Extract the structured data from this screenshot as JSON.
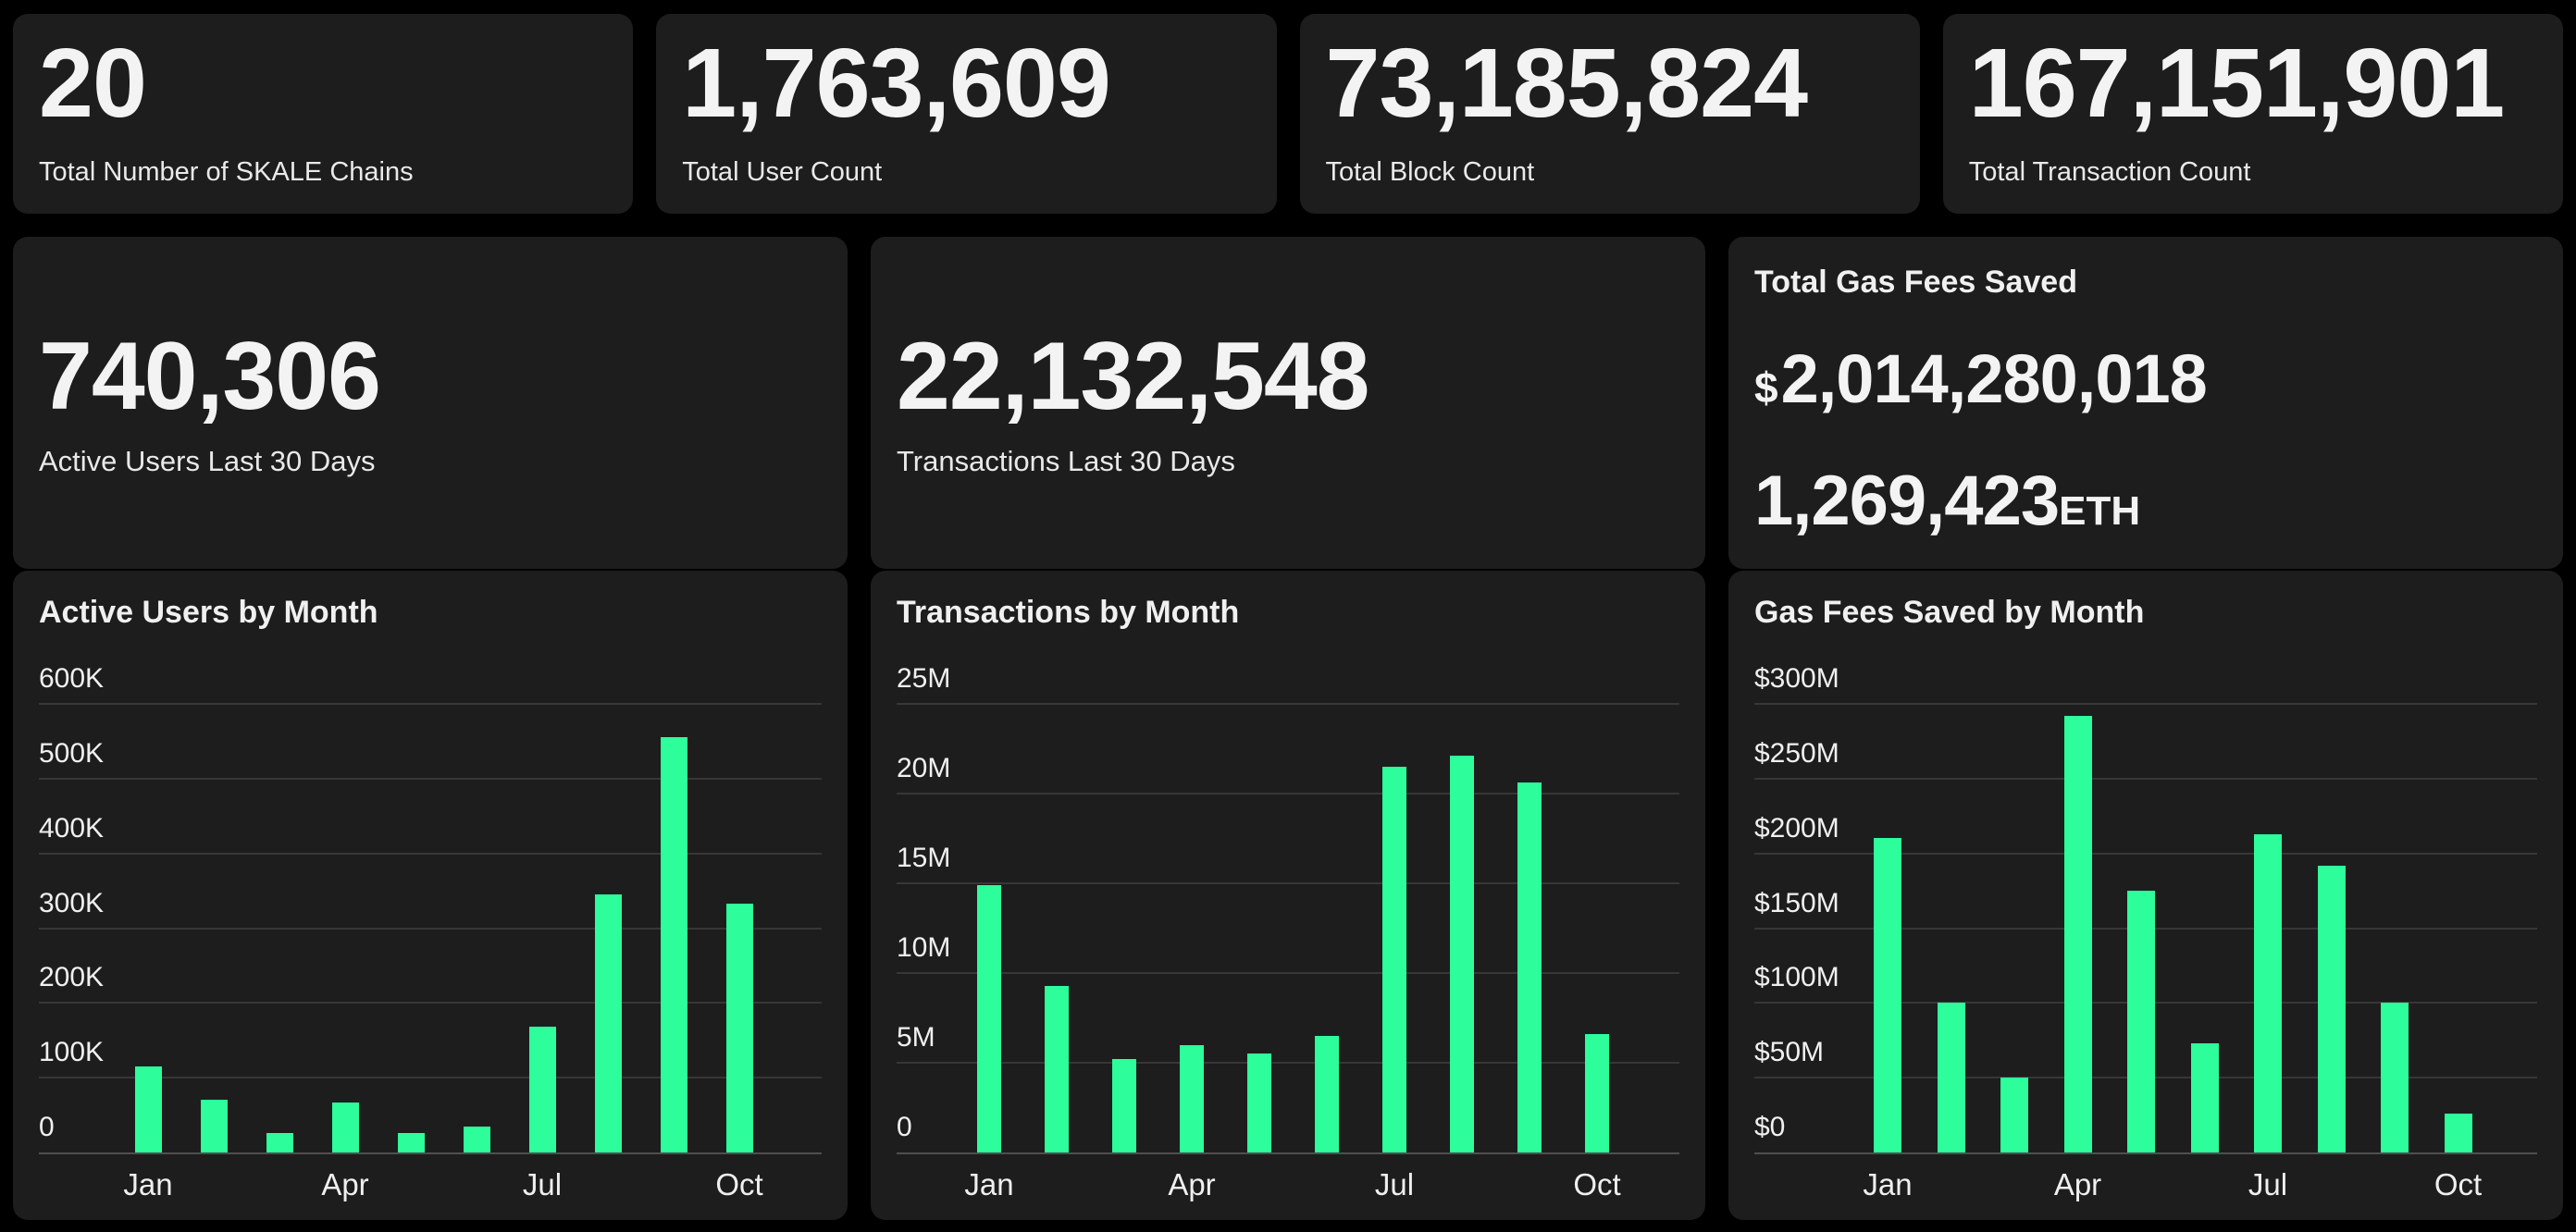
{
  "theme": {
    "page_background": "#000000",
    "card_background": "#1D1D1D",
    "accent_green": "#2DFD9A",
    "gridline_color": "#373737",
    "axis_color": "#4F4F4F"
  },
  "stat_cards": [
    {
      "value": "20",
      "label": "Total Number of SKALE Chains"
    },
    {
      "value": "1,763,609",
      "label": "Total User Count"
    },
    {
      "value": "73,185,824",
      "label": "Total Block Count"
    },
    {
      "value": "167,151,901",
      "label": "Total Transaction Count"
    }
  ],
  "mid_row": {
    "active_users": {
      "value": "740,306",
      "label": "Active Users Last 30 Days"
    },
    "transactions": {
      "value": "22,132,548",
      "label": "Transactions Last 30 Days"
    },
    "gas": {
      "title": "Total Gas Fees Saved",
      "currency_symbol": "$",
      "usd_value": "2,014,280,018",
      "eth_value": "1,269,423",
      "eth_unit": "ETH"
    }
  },
  "chart_data": [
    {
      "type": "bar",
      "title": "Active Users by Month",
      "categories": [
        "Jan",
        "Feb",
        "Mar",
        "Apr",
        "May",
        "Jun",
        "Jul",
        "Aug",
        "Sep",
        "Oct"
      ],
      "values": [
        115000,
        70000,
        26000,
        67000,
        26000,
        35000,
        168000,
        345000,
        555000,
        333000
      ],
      "ylim": [
        0,
        600000
      ],
      "y_ticks": [
        "600K",
        "500K",
        "400K",
        "300K",
        "200K",
        "100K",
        "0"
      ],
      "x_axis_labels": [
        "Jan",
        "Apr",
        "Jul",
        "Oct"
      ],
      "grid": "horizontal",
      "legend": "none",
      "bar_color": "#2DFD9A"
    },
    {
      "type": "bar",
      "title": "Transactions by Month",
      "categories": [
        "Jan",
        "Feb",
        "Mar",
        "Apr",
        "May",
        "Jun",
        "Jul",
        "Aug",
        "Sep",
        "Oct"
      ],
      "values": [
        14900000,
        9300000,
        5200000,
        6000000,
        5500000,
        6500000,
        21500000,
        22100000,
        20600000,
        6600000
      ],
      "ylim": [
        0,
        25000000
      ],
      "y_ticks": [
        "25M",
        "20M",
        "15M",
        "10M",
        "5M",
        "0"
      ],
      "x_axis_labels": [
        "Jan",
        "Apr",
        "Jul",
        "Oct"
      ],
      "grid": "horizontal",
      "legend": "none",
      "bar_color": "#2DFD9A"
    },
    {
      "type": "bar",
      "title": "Gas Fees Saved by Month",
      "categories": [
        "Jan",
        "Feb",
        "Mar",
        "Apr",
        "May",
        "Jun",
        "Jul",
        "Aug",
        "Sep",
        "Oct"
      ],
      "values": [
        210000000,
        100000000,
        50000000,
        292000000,
        175000000,
        73000000,
        213000000,
        192000000,
        100000000,
        26000000
      ],
      "ylim": [
        0,
        300000000
      ],
      "y_ticks": [
        "$300M",
        "$250M",
        "$200M",
        "$150M",
        "$100M",
        "$50M",
        "$0"
      ],
      "x_axis_labels": [
        "Jan",
        "Apr",
        "Jul",
        "Oct"
      ],
      "grid": "horizontal",
      "legend": "none",
      "bar_color": "#2DFD9A"
    }
  ]
}
